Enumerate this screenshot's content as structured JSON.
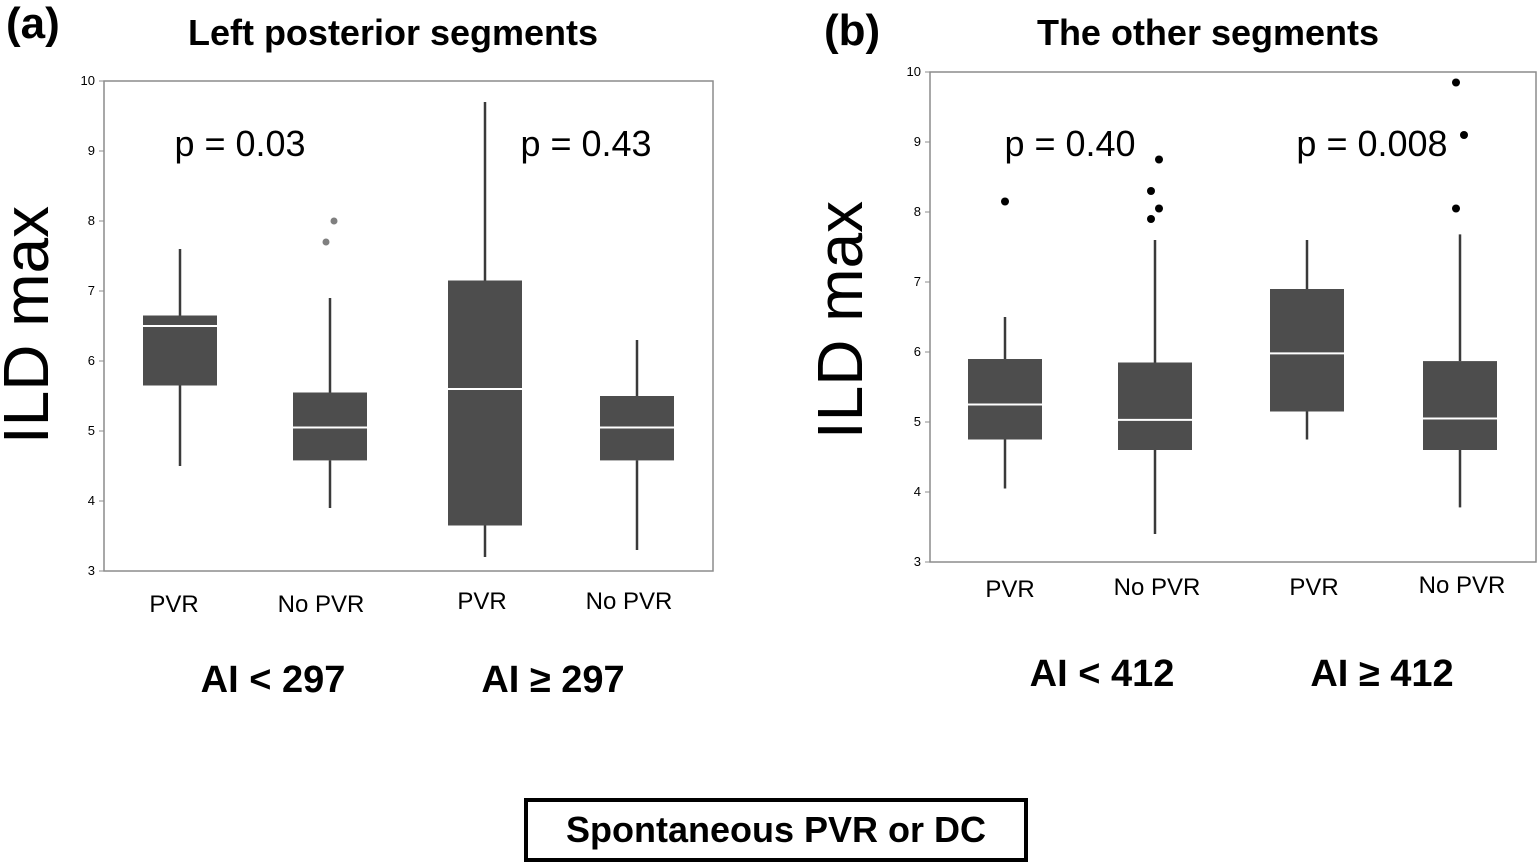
{
  "chart_data": [
    {
      "type": "box",
      "panel_label": "(a)",
      "title": "Left posterior segments",
      "ylabel": "ILD max",
      "ylim": [
        3,
        10
      ],
      "yticks": [
        3,
        4,
        5,
        6,
        7,
        8,
        9,
        10
      ],
      "grid": false,
      "groups": [
        {
          "label": "AI < 297",
          "p_value": "p = 0.03"
        },
        {
          "label": "AI ≥ 297",
          "p_value": "p = 0.43"
        }
      ],
      "categories": [
        "PVR",
        "No PVR",
        "PVR",
        "No PVR"
      ],
      "boxes": [
        {
          "whisker_low": 4.5,
          "q1": 5.65,
          "median": 6.5,
          "q3": 6.65,
          "whisker_high": 7.6,
          "outliers": []
        },
        {
          "whisker_low": 3.9,
          "q1": 4.58,
          "median": 5.05,
          "q3": 5.55,
          "whisker_high": 6.9,
          "outliers": [
            7.7,
            8.0
          ]
        },
        {
          "whisker_low": 3.2,
          "q1": 3.65,
          "median": 5.6,
          "q3": 7.15,
          "whisker_high": 9.7,
          "outliers": []
        },
        {
          "whisker_low": 3.3,
          "q1": 4.58,
          "median": 5.05,
          "q3": 5.5,
          "whisker_high": 6.3,
          "outliers": []
        }
      ]
    },
    {
      "type": "box",
      "panel_label": "(b)",
      "title": "The other segments",
      "ylabel": "ILD max",
      "ylim": [
        3,
        10
      ],
      "yticks": [
        3,
        4,
        5,
        6,
        7,
        8,
        9,
        10
      ],
      "grid": false,
      "groups": [
        {
          "label": "AI < 412",
          "p_value": "p = 0.40"
        },
        {
          "label": "AI ≥ 412",
          "p_value": "p = 0.008"
        }
      ],
      "categories": [
        "PVR",
        "No PVR",
        "PVR",
        "No PVR"
      ],
      "boxes": [
        {
          "whisker_low": 4.05,
          "q1": 4.75,
          "median": 5.25,
          "q3": 5.9,
          "whisker_high": 6.5,
          "outliers": [
            8.15
          ]
        },
        {
          "whisker_low": 3.4,
          "q1": 4.6,
          "median": 5.03,
          "q3": 5.85,
          "whisker_high": 7.6,
          "outliers": [
            7.9,
            8.05,
            8.3,
            8.75
          ]
        },
        {
          "whisker_low": 4.75,
          "q1": 5.15,
          "median": 5.98,
          "q3": 6.9,
          "whisker_high": 7.6,
          "outliers": []
        },
        {
          "whisker_low": 3.78,
          "q1": 4.6,
          "median": 5.05,
          "q3": 5.87,
          "whisker_high": 7.68,
          "outliers": [
            8.05,
            9.1,
            9.85
          ]
        }
      ]
    }
  ],
  "footer": "Spontaneous PVR or DC",
  "colors": {
    "box": "#4d4d4d",
    "median": "#ffffff",
    "whisker": "#3a3a3a",
    "outlier_a": "#7f7f7f",
    "outlier_b": "#000000",
    "frame": "#8c8c8c"
  }
}
